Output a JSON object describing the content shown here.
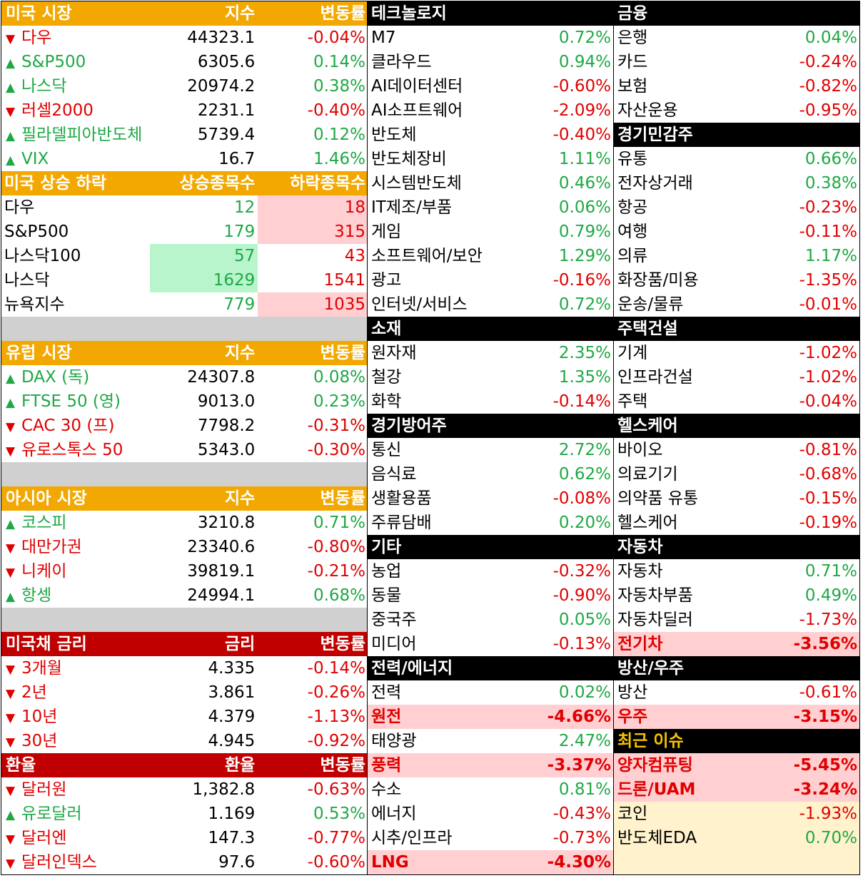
{
  "us_market": {
    "headers": [
      "미국 시장",
      "지수",
      "변동률"
    ],
    "rows": [
      {
        "arrow": "▼",
        "name": "다우",
        "value": "44323.1",
        "change": "-0.04%",
        "dir": "down"
      },
      {
        "arrow": "▲",
        "name": "S&P500",
        "value": "6305.6",
        "change": "0.14%",
        "dir": "up"
      },
      {
        "arrow": "▲",
        "name": "나스닥",
        "value": "20974.2",
        "change": "0.38%",
        "dir": "up"
      },
      {
        "arrow": "▼",
        "name": "러셀2000",
        "value": "2231.1",
        "change": "-0.40%",
        "dir": "down"
      },
      {
        "arrow": "▲",
        "name": "필라델피아반도체",
        "value": "5739.4",
        "change": "0.12%",
        "dir": "up"
      },
      {
        "arrow": "▲",
        "name": "VIX",
        "value": "16.7",
        "change": "1.46%",
        "dir": "up"
      }
    ]
  },
  "us_breadth": {
    "headers": [
      "미국 상승 하락",
      "상승종목수",
      "하락종목수"
    ],
    "rows": [
      {
        "name": "다우",
        "up": "12",
        "down": "18",
        "highlight": "down"
      },
      {
        "name": "S&P500",
        "up": "179",
        "down": "315",
        "highlight": "down"
      },
      {
        "name": "나스닥100",
        "up": "57",
        "down": "43",
        "highlight": "up"
      },
      {
        "name": "나스닥",
        "up": "1629",
        "down": "1541",
        "highlight": "up"
      },
      {
        "name": "뉴욕지수",
        "up": "779",
        "down": "1035",
        "highlight": "down"
      }
    ]
  },
  "eu_market": {
    "headers": [
      "유럽 시장",
      "지수",
      "변동률"
    ],
    "rows": [
      {
        "arrow": "▲",
        "name": "DAX (독)",
        "value": "24307.8",
        "change": "0.08%",
        "dir": "up"
      },
      {
        "arrow": "▲",
        "name": "FTSE 50 (영)",
        "value": "9013.0",
        "change": "0.23%",
        "dir": "up"
      },
      {
        "arrow": "▼",
        "name": "CAC 30 (프)",
        "value": "7798.2",
        "change": "-0.31%",
        "dir": "down"
      },
      {
        "arrow": "▼",
        "name": "유로스톡스 50",
        "value": "5343.0",
        "change": "-0.30%",
        "dir": "down"
      }
    ]
  },
  "asia_market": {
    "headers": [
      "아시아 시장",
      "지수",
      "변동률"
    ],
    "rows": [
      {
        "arrow": "▲",
        "name": "코스피",
        "value": "3210.8",
        "change": "0.71%",
        "dir": "up"
      },
      {
        "arrow": "▼",
        "name": "대만가권",
        "value": "23340.6",
        "change": "-0.80%",
        "dir": "down"
      },
      {
        "arrow": "▼",
        "name": "니케이",
        "value": "39819.1",
        "change": "-0.21%",
        "dir": "down"
      },
      {
        "arrow": "▲",
        "name": "항셍",
        "value": "24994.1",
        "change": "0.68%",
        "dir": "up"
      }
    ]
  },
  "us_bonds": {
    "headers": [
      "미국채 금리",
      "금리",
      "변동률"
    ],
    "rows": [
      {
        "arrow": "▼",
        "name": "3개월",
        "value": "4.335",
        "change": "-0.14%",
        "dir": "down"
      },
      {
        "arrow": "▼",
        "name": "2년",
        "value": "3.861",
        "change": "-0.26%",
        "dir": "down"
      },
      {
        "arrow": "▼",
        "name": "10년",
        "value": "4.379",
        "change": "-1.13%",
        "dir": "down"
      },
      {
        "arrow": "▼",
        "name": "30년",
        "value": "4.945",
        "change": "-0.92%",
        "dir": "down"
      }
    ]
  },
  "fx": {
    "headers": [
      "환율",
      "환율",
      "변동률"
    ],
    "rows": [
      {
        "arrow": "▼",
        "name": "달러원",
        "value": "1,382.8",
        "change": "-0.63%",
        "dir": "down"
      },
      {
        "arrow": "▲",
        "name": "유로달러",
        "value": "1.169",
        "change": "0.53%",
        "dir": "up"
      },
      {
        "arrow": "▼",
        "name": "달러엔",
        "value": "147.3",
        "change": "-0.77%",
        "dir": "down"
      },
      {
        "arrow": "▼",
        "name": "달러인덱스",
        "value": "97.6",
        "change": "-0.60%",
        "dir": "down"
      }
    ]
  },
  "col2": [
    {
      "type": "header",
      "label": "테크놀로지"
    },
    {
      "name": "M7",
      "change": "0.72%",
      "dir": "up"
    },
    {
      "name": "클라우드",
      "change": "0.94%",
      "dir": "up"
    },
    {
      "name": "AI데이터센터",
      "change": "-0.60%",
      "dir": "down"
    },
    {
      "name": "AI소프트웨어",
      "change": "-2.09%",
      "dir": "down"
    },
    {
      "name": "반도체",
      "change": "-0.40%",
      "dir": "down"
    },
    {
      "name": "반도체장비",
      "change": "1.11%",
      "dir": "up"
    },
    {
      "name": "시스템반도체",
      "change": "0.46%",
      "dir": "up"
    },
    {
      "name": "IT제조/부품",
      "change": "0.06%",
      "dir": "up"
    },
    {
      "name": "게임",
      "change": "0.79%",
      "dir": "up"
    },
    {
      "name": "소프트웨어/보안",
      "change": "1.29%",
      "dir": "up"
    },
    {
      "name": "광고",
      "change": "-0.16%",
      "dir": "down"
    },
    {
      "name": "인터넷/서비스",
      "change": "0.72%",
      "dir": "up"
    },
    {
      "type": "header",
      "label": "소재"
    },
    {
      "name": "원자재",
      "change": "2.35%",
      "dir": "up"
    },
    {
      "name": "철강",
      "change": "1.35%",
      "dir": "up"
    },
    {
      "name": "화학",
      "change": "-0.14%",
      "dir": "down"
    },
    {
      "type": "header",
      "label": "경기방어주"
    },
    {
      "name": "통신",
      "change": "2.72%",
      "dir": "up"
    },
    {
      "name": "음식료",
      "change": "0.62%",
      "dir": "up"
    },
    {
      "name": "생활용품",
      "change": "-0.08%",
      "dir": "down"
    },
    {
      "name": "주류담배",
      "change": "0.20%",
      "dir": "up"
    },
    {
      "type": "header",
      "label": "기타"
    },
    {
      "name": "농업",
      "change": "-0.32%",
      "dir": "down"
    },
    {
      "name": "동물",
      "change": "-0.90%",
      "dir": "down"
    },
    {
      "name": "중국주",
      "change": "0.05%",
      "dir": "up"
    },
    {
      "name": "미디어",
      "change": "-0.13%",
      "dir": "down"
    },
    {
      "type": "header",
      "label": "전력/에너지"
    },
    {
      "name": "전력",
      "change": "0.02%",
      "dir": "up"
    },
    {
      "name": "원전",
      "change": "-4.66%",
      "dir": "down",
      "hot": true
    },
    {
      "name": "태양광",
      "change": "2.47%",
      "dir": "up"
    },
    {
      "name": "풍력",
      "change": "-3.37%",
      "dir": "down",
      "hot": true
    },
    {
      "name": "수소",
      "change": "0.81%",
      "dir": "up"
    },
    {
      "name": "에너지",
      "change": "-0.43%",
      "dir": "down"
    },
    {
      "name": "시추/인프라",
      "change": "-0.73%",
      "dir": "down"
    },
    {
      "name": "LNG",
      "change": "-4.30%",
      "dir": "down",
      "hot": true
    }
  ],
  "col3": [
    {
      "type": "header",
      "label": "금융"
    },
    {
      "name": "은행",
      "change": "0.04%",
      "dir": "up"
    },
    {
      "name": "카드",
      "change": "-0.24%",
      "dir": "down"
    },
    {
      "name": "보험",
      "change": "-0.82%",
      "dir": "down"
    },
    {
      "name": "자산운용",
      "change": "-0.95%",
      "dir": "down"
    },
    {
      "type": "header",
      "label": "경기민감주"
    },
    {
      "name": "유통",
      "change": "0.66%",
      "dir": "up"
    },
    {
      "name": "전자상거래",
      "change": "0.38%",
      "dir": "up"
    },
    {
      "name": "항공",
      "change": "-0.23%",
      "dir": "down"
    },
    {
      "name": "여행",
      "change": "-0.11%",
      "dir": "down"
    },
    {
      "name": "의류",
      "change": "1.17%",
      "dir": "up"
    },
    {
      "name": "화장품/미용",
      "change": "-1.35%",
      "dir": "down"
    },
    {
      "name": "운송/물류",
      "change": "-0.01%",
      "dir": "down"
    },
    {
      "type": "header",
      "label": "주택건설"
    },
    {
      "name": "기계",
      "change": "-1.02%",
      "dir": "down"
    },
    {
      "name": "인프라건설",
      "change": "-1.02%",
      "dir": "down"
    },
    {
      "name": "주택",
      "change": "-0.04%",
      "dir": "down"
    },
    {
      "type": "header",
      "label": "헬스케어"
    },
    {
      "name": "바이오",
      "change": "-0.81%",
      "dir": "down"
    },
    {
      "name": "의료기기",
      "change": "-0.68%",
      "dir": "down"
    },
    {
      "name": "의약품 유통",
      "change": "-0.15%",
      "dir": "down"
    },
    {
      "name": "헬스케어",
      "change": "-0.19%",
      "dir": "down"
    },
    {
      "type": "header",
      "label": "자동차"
    },
    {
      "name": "자동차",
      "change": "0.71%",
      "dir": "up"
    },
    {
      "name": "자동차부품",
      "change": "0.49%",
      "dir": "up"
    },
    {
      "name": "자동차딜러",
      "change": "-1.73%",
      "dir": "down"
    },
    {
      "name": "전기차",
      "change": "-3.56%",
      "dir": "down",
      "hot": true
    },
    {
      "type": "header",
      "label": "방산/우주"
    },
    {
      "name": "방산",
      "change": "-0.61%",
      "dir": "down"
    },
    {
      "name": "우주",
      "change": "-3.15%",
      "dir": "down",
      "hot": true
    },
    {
      "type": "header",
      "label": "최근 이슈",
      "gold": true
    },
    {
      "name": "양자컴퓨팅",
      "change": "-5.45%",
      "dir": "down",
      "hot": true
    },
    {
      "name": "드론/UAM",
      "change": "-3.24%",
      "dir": "down",
      "hot": true
    },
    {
      "name": "코인",
      "change": "-1.93%",
      "dir": "down",
      "cream": true
    },
    {
      "name": "반도체EDA",
      "change": "0.70%",
      "dir": "up",
      "cream": true
    },
    {
      "type": "blank",
      "cream": true
    }
  ],
  "colors": {
    "up": "#1fa845",
    "down": "#e00000",
    "orange_header": "#f2a800",
    "red_header": "#c00000",
    "hot_bg": "#ffcfd2",
    "cream_bg": "#fff2cc"
  }
}
